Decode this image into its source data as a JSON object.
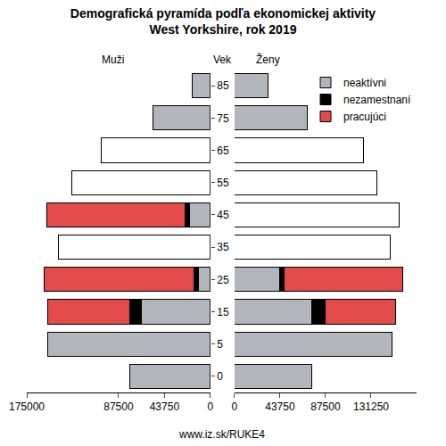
{
  "chart_data": {
    "type": "bar",
    "orientation": "horizontal",
    "stacked": true,
    "title": "Demografická pyramída podľa ekonomickej aktivity\nWest Yorkshire, rok 2019",
    "y_label": "Vek",
    "source": "www.iz.sk/RUKE4",
    "legend": "top right",
    "categories": [
      "0",
      "5",
      "15",
      "25",
      "35",
      "45",
      "55",
      "65",
      "75",
      "85"
    ],
    "panels": [
      {
        "label": "Muži",
        "xlim": [
          175000,
          0
        ],
        "xticks": [
          175000,
          87500,
          43750,
          0
        ],
        "series": [
          {
            "name": "neaktívni",
            "color": "#b2b5bb",
            "values": [
              77000,
              155000,
              66000,
              11000,
              null,
              19500,
              null,
              null,
              55000,
              17000
            ]
          },
          {
            "name": "nezamestnaní",
            "color": "#000000",
            "values": [
              null,
              null,
              11000,
              4200,
              null,
              5000,
              null,
              null,
              null,
              null
            ]
          },
          {
            "name": "pracujúci",
            "color": "#e34a4a",
            "values": [
              null,
              null,
              78000,
              143500,
              null,
              131000,
              null,
              null,
              null,
              null
            ]
          },
          {
            "name": null,
            "color": "#ffffff",
            "values": [
              null,
              null,
              null,
              null,
              145000,
              null,
              132000,
              104000,
              null,
              null
            ]
          }
        ]
      },
      {
        "label": "Ženy",
        "xlim": [
          0,
          175000
        ],
        "xticks": [
          0,
          43750,
          87500,
          131250
        ],
        "series": [
          {
            "name": "neaktívni",
            "color": "#b2b5bb",
            "values": [
              74500,
              151000,
              74000,
              43000,
              null,
              null,
              null,
              null,
              70000,
              32500
            ]
          },
          {
            "name": "nezamestnaní",
            "color": "#000000",
            "values": [
              null,
              null,
              13000,
              5000,
              null,
              null,
              null,
              null,
              null,
              null
            ]
          },
          {
            "name": "pracujúci",
            "color": "#e34a4a",
            "values": [
              null,
              null,
              68000,
              114000,
              null,
              null,
              null,
              null,
              null,
              null
            ]
          },
          {
            "name": null,
            "color": "#ffffff",
            "values": [
              null,
              null,
              null,
              null,
              150000,
              158000,
              137000,
              124000,
              null,
              null
            ]
          }
        ]
      }
    ]
  }
}
